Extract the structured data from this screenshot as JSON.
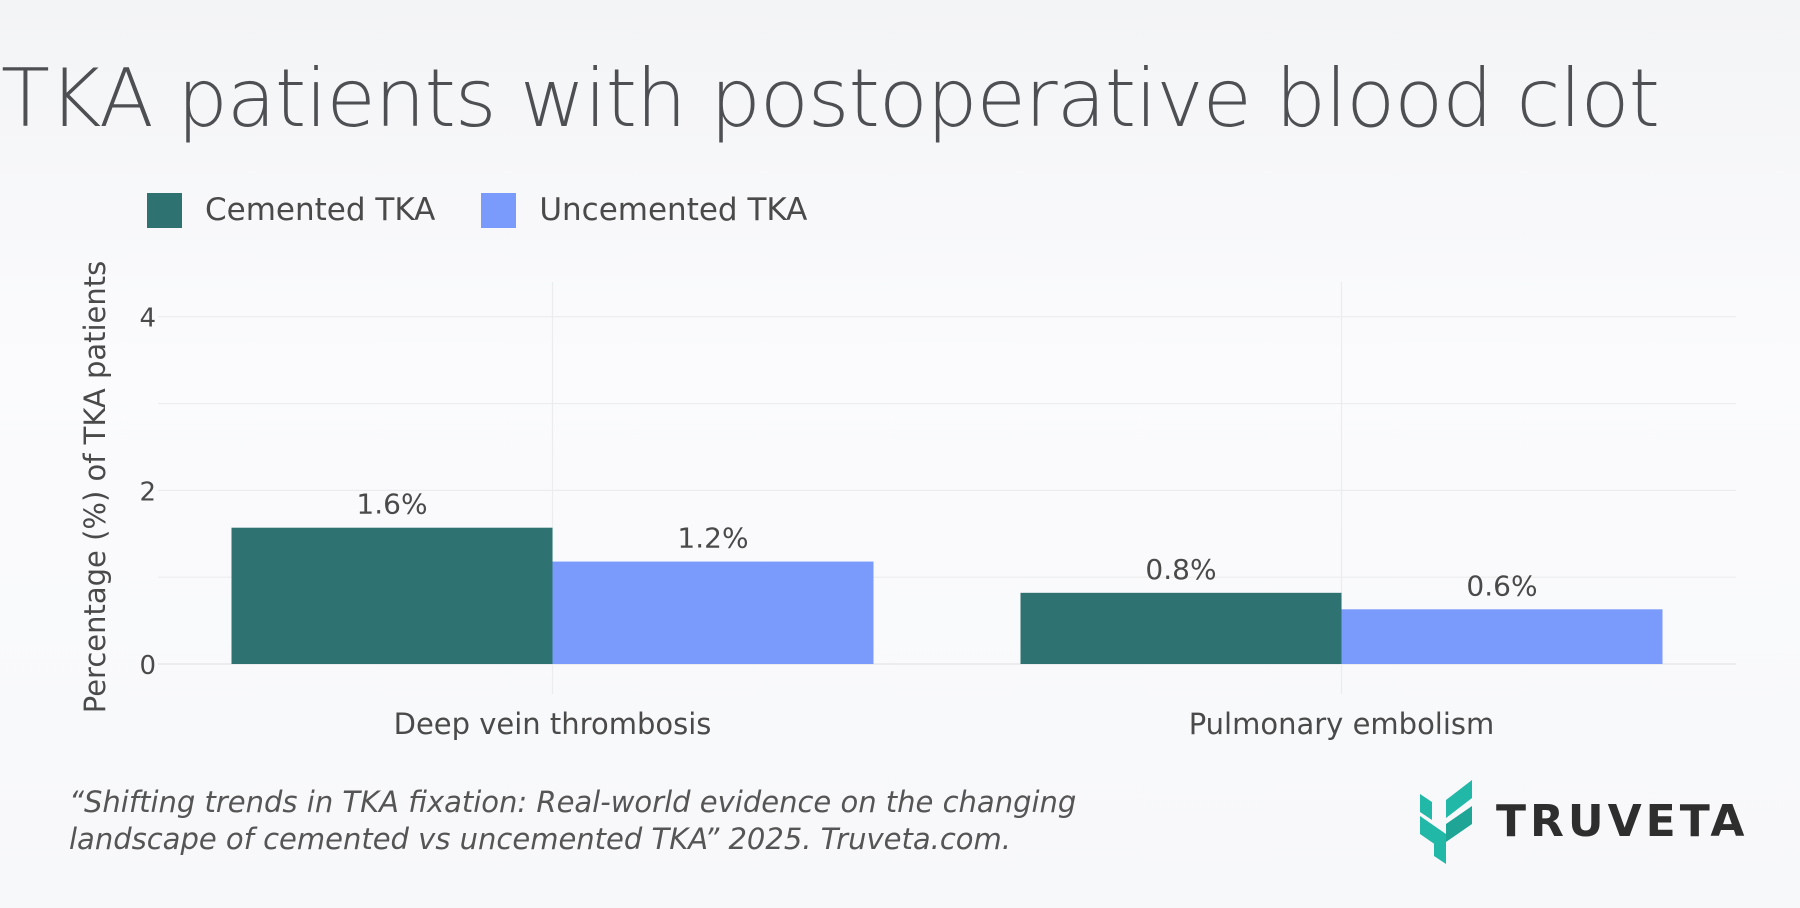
{
  "header": {
    "title": "TKA patients with postoperative blood clot"
  },
  "legend": [
    {
      "label": "Cemented TKA",
      "color": "#2e7371"
    },
    {
      "label": "Uncemented TKA",
      "color": "#7b9bfc"
    }
  ],
  "chart_data": {
    "type": "bar",
    "title": "TKA patients with postoperative blood clot",
    "xlabel": "",
    "ylabel": "Percentage (%) of TKA patients",
    "categories": [
      "Deep vein thrombosis",
      "Pulmonary embolism"
    ],
    "series": [
      {
        "name": "Cemented TKA",
        "values": [
          1.57,
          0.82
        ],
        "labels": [
          "1.6%",
          "0.8%"
        ],
        "color": "#2e7371"
      },
      {
        "name": "Uncemented TKA",
        "values": [
          1.18,
          0.63
        ],
        "labels": [
          "1.2%",
          "0.6%"
        ],
        "color": "#7b9bfc"
      }
    ],
    "ylim": [
      0,
      4.4
    ],
    "yticks": [
      0,
      2,
      4
    ],
    "grid": true,
    "legend_position": "top-left"
  },
  "citation": {
    "line1": "“Shifting trends in TKA fixation: Real-world evidence on the changing",
    "line2": "landscape of cemented vs uncemented TKA” 2025. Truveta.com."
  },
  "brand": {
    "name": "TRUVETA",
    "logo_icon": "truveta-chevron-logo",
    "logo_color": "#22b8a8"
  }
}
